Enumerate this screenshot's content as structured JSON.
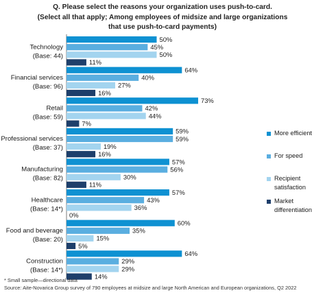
{
  "chart_data": {
    "type": "bar",
    "orientation": "horizontal",
    "title_lines": [
      "Q. Please select the reasons your organization uses push-to-card.",
      "(Select all that apply; Among employees of midsize and large organizations",
      "that use push-to-card payments)"
    ],
    "categories": [
      [
        "Technology",
        "(Base: 44)"
      ],
      [
        "Financial services",
        "(Base: 96)"
      ],
      [
        "Retail",
        "(Base: 59)"
      ],
      [
        "Professional services",
        "(Base: 37)"
      ],
      [
        "Manufacturing",
        "(Base: 82)"
      ],
      [
        "Healthcare",
        "(Base: 14*)"
      ],
      [
        "Food and beverage",
        "(Base: 20)"
      ],
      [
        "Construction",
        "(Base: 14*)"
      ]
    ],
    "series": [
      {
        "name": "More efficient",
        "color": "#0e91d2",
        "values": [
          50,
          64,
          73,
          59,
          57,
          57,
          60,
          64
        ]
      },
      {
        "name": "For speed",
        "color": "#5aaee0",
        "values": [
          45,
          40,
          42,
          59,
          56,
          43,
          35,
          29
        ]
      },
      {
        "name": "Recipient satisfaction",
        "legend_lines": [
          "Recipient",
          "satisfaction"
        ],
        "color": "#a3d4ef",
        "values": [
          50,
          27,
          44,
          19,
          30,
          36,
          15,
          29
        ]
      },
      {
        "name": "Market differentiation",
        "legend_lines": [
          "Market",
          "differentiation"
        ],
        "color": "#1e3f6b",
        "values": [
          11,
          16,
          7,
          16,
          11,
          0,
          5,
          14
        ]
      }
    ],
    "value_suffix": "%",
    "xlim": [
      0,
      80
    ],
    "grid": false,
    "legend_position": "right"
  },
  "footnotes": [
    "* Small sample—directional data",
    "Source: Aite-Novarica Group survey of 790 employees at midsize and large North American and European organizations, Q2 2022"
  ]
}
